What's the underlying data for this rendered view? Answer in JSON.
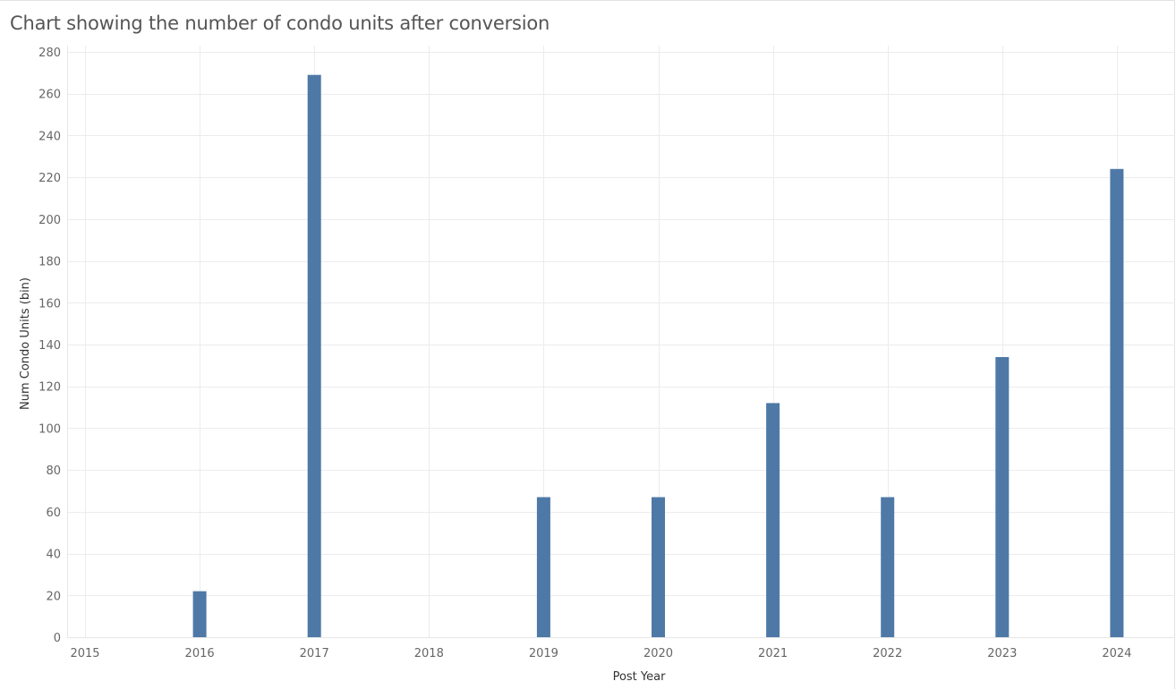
{
  "chart_data": {
    "type": "bar",
    "title": "Chart showing the number of condo units after conversion",
    "xlabel": "Post Year",
    "ylabel": "Num Condo Units (bin)",
    "x_ticks": [
      "2015",
      "2016",
      "2017",
      "2018",
      "2019",
      "2020",
      "2021",
      "2022",
      "2023",
      "2024"
    ],
    "y_ticks": [
      0,
      20,
      40,
      60,
      80,
      100,
      120,
      140,
      160,
      180,
      200,
      220,
      240,
      260,
      280
    ],
    "ylim": [
      0,
      280
    ],
    "grid": true,
    "categories": [
      "2016",
      "2017",
      "2019",
      "2020",
      "2021",
      "2022",
      "2023",
      "2024"
    ],
    "values": [
      22,
      269,
      67,
      67,
      112,
      67,
      134,
      224
    ],
    "bar_color": "#4e79a7",
    "grid_color": "#ececec"
  }
}
